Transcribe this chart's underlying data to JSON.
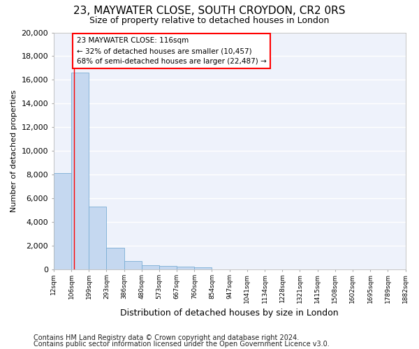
{
  "title": "23, MAYWATER CLOSE, SOUTH CROYDON, CR2 0RS",
  "subtitle": "Size of property relative to detached houses in London",
  "xlabel": "Distribution of detached houses by size in London",
  "ylabel": "Number of detached properties",
  "bar_color": "#c5d8f0",
  "bar_edge_color": "#7aaed4",
  "background_color": "#eef2fb",
  "grid_color": "#ffffff",
  "tick_labels": [
    "12sqm",
    "106sqm",
    "199sqm",
    "293sqm",
    "386sqm",
    "480sqm",
    "573sqm",
    "667sqm",
    "760sqm",
    "854sqm",
    "947sqm",
    "1041sqm",
    "1134sqm",
    "1228sqm",
    "1321sqm",
    "1415sqm",
    "1508sqm",
    "1602sqm",
    "1695sqm",
    "1789sqm",
    "1882sqm"
  ],
  "bar_heights": [
    8100,
    16600,
    5300,
    1850,
    700,
    380,
    280,
    220,
    160,
    0,
    0,
    0,
    0,
    0,
    0,
    0,
    0,
    0,
    0,
    0
  ],
  "ylim": [
    0,
    20000
  ],
  "yticks": [
    0,
    2000,
    4000,
    6000,
    8000,
    10000,
    12000,
    14000,
    16000,
    18000,
    20000
  ],
  "property_line_x": 1.15,
  "annotation_line1": "23 MAYWATER CLOSE: 116sqm",
  "annotation_line2": "← 32% of detached houses are smaller (10,457)",
  "annotation_line3": "68% of semi-detached houses are larger (22,487) →",
  "footer_line1": "Contains HM Land Registry data © Crown copyright and database right 2024.",
  "footer_line2": "Contains public sector information licensed under the Open Government Licence v3.0.",
  "title_fontsize": 11,
  "subtitle_fontsize": 9,
  "annot_fontsize": 7.5,
  "footer_fontsize": 7,
  "ylabel_fontsize": 8,
  "xlabel_fontsize": 9,
  "ytick_fontsize": 8,
  "xtick_fontsize": 6.5
}
